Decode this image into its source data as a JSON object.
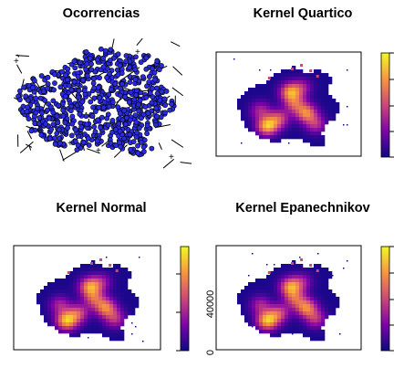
{
  "figure": {
    "layout": "2x2"
  },
  "chart_data": [
    {
      "type": "map",
      "panel": "top-left",
      "title": "Ocorrencias",
      "content": "point occurrences over city road network",
      "colors": {
        "points": "#2a2adf",
        "outline": "#000000"
      }
    },
    {
      "type": "heatmap",
      "panel": "top-right",
      "title": "Kernel Quartico",
      "legend": "right",
      "colorbar_ticks": [],
      "palette": [
        "#0d0887",
        "#7e03a8",
        "#cc4778",
        "#f89540",
        "#f0f921"
      ]
    },
    {
      "type": "heatmap",
      "panel": "bottom-left",
      "title": "Kernel Normal",
      "legend": "right",
      "colorbar_ticks": [
        0,
        40000
      ],
      "palette": [
        "#0d0887",
        "#7e03a8",
        "#cc4778",
        "#f89540",
        "#f0f921"
      ]
    },
    {
      "type": "heatmap",
      "panel": "bottom-right",
      "title": "Kernel Epanechnikov",
      "legend": "right",
      "colorbar_ticks": [],
      "palette": [
        "#0d0887",
        "#7e03a8",
        "#cc4778",
        "#f89540",
        "#f0f921"
      ]
    }
  ]
}
